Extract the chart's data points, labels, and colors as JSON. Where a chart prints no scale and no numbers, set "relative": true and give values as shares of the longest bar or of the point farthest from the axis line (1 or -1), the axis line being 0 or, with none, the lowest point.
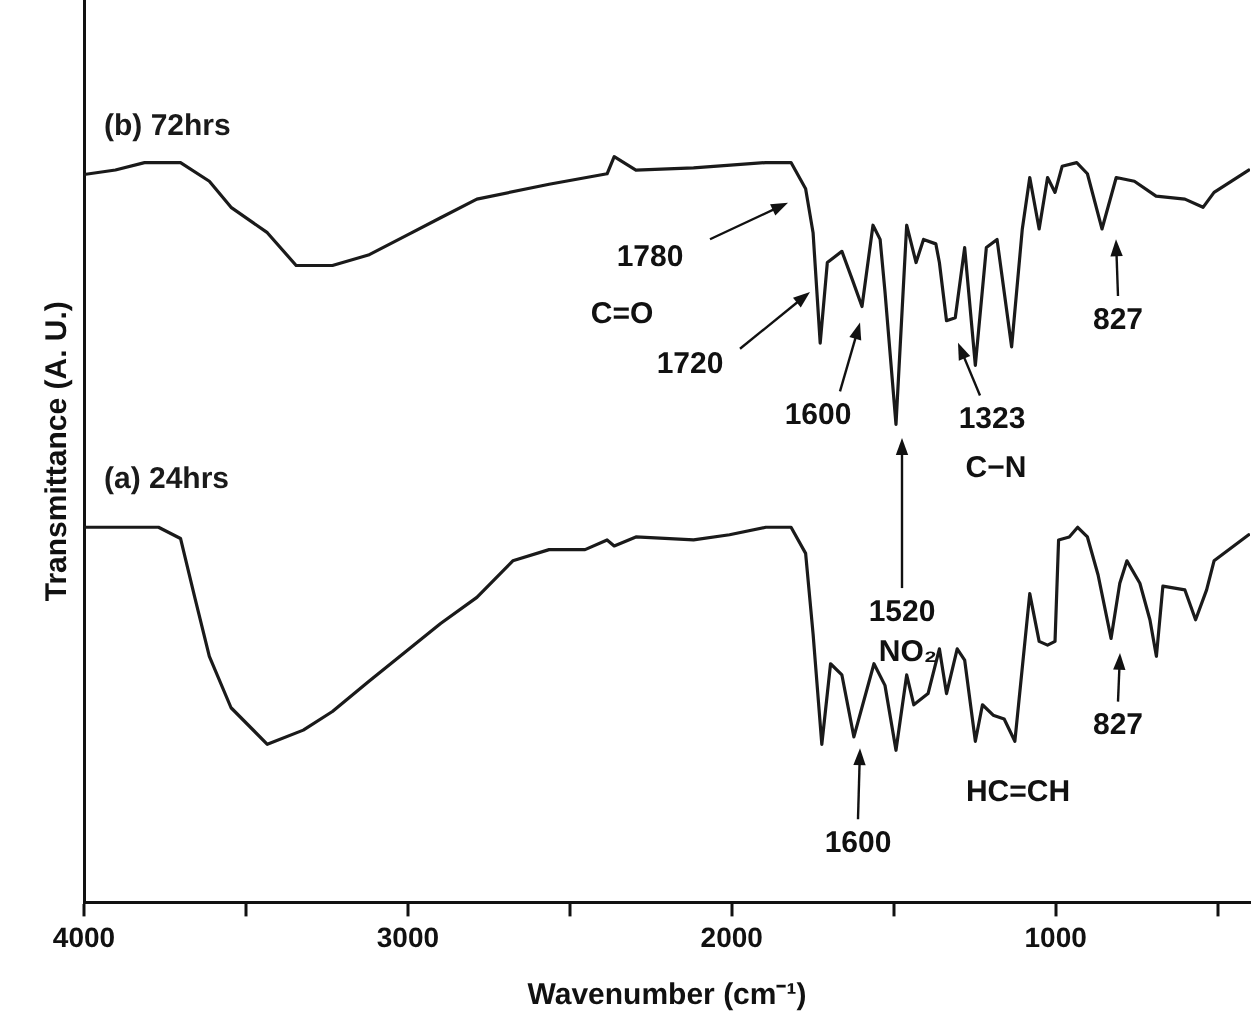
{
  "chart_data": {
    "type": "line",
    "xlabel": "Wavenumber (cm⁻¹)",
    "ylabel": "Transmittance (A. U.)",
    "relative": true,
    "legend": false,
    "grid": false,
    "marker": "none",
    "xlim": [
      4000,
      400
    ],
    "xticks": [
      4000,
      {
        "value": 3500,
        "label": null
      },
      3000,
      {
        "value": 2500,
        "label": null
      },
      2000,
      {
        "value": 1500,
        "label": null
      },
      1000,
      {
        "value": 500,
        "label": null
      }
    ],
    "series": [
      {
        "name": "(b) 72hrs",
        "color": "#1a1a1a",
        "x": [
          4000,
          3903,
          3813,
          3702,
          3613,
          3546,
          3434,
          3345,
          3233,
          3122,
          3010,
          2899,
          2787,
          2564,
          2385,
          2363,
          2296,
          2118,
          1895,
          1817,
          1772,
          1749,
          1727,
          1705,
          1660,
          1627,
          1598,
          1564,
          1542,
          1527,
          1493,
          1460,
          1431,
          1408,
          1370,
          1359,
          1337,
          1310,
          1281,
          1248,
          1214,
          1181,
          1136,
          1103,
          1080,
          1051,
          1025,
          1002,
          980,
          935,
          902,
          857,
          813,
          757,
          690,
          601,
          545,
          511,
          404
        ],
        "values": [
          0.976,
          0.982,
          0.992,
          0.992,
          0.967,
          0.932,
          0.898,
          0.854,
          0.854,
          0.868,
          0.893,
          0.918,
          0.943,
          0.963,
          0.977,
          1,
          0.982,
          0.985,
          0.992,
          0.992,
          0.957,
          0.898,
          0.75,
          0.858,
          0.873,
          0.834,
          0.799,
          0.908,
          0.889,
          0.819,
          0.641,
          0.908,
          0.858,
          0.889,
          0.883,
          0.858,
          0.78,
          0.784,
          0.878,
          0.72,
          0.878,
          0.889,
          0.745,
          0.903,
          0.972,
          0.903,
          0.972,
          0.952,
          0.987,
          0.992,
          0.977,
          0.903,
          0.972,
          0.967,
          0.947,
          0.943,
          0.932,
          0.952,
          0.982
        ]
      },
      {
        "name": "(a) 24hrs",
        "color": "#1a1a1a",
        "x": [
          4000,
          3903,
          3770,
          3702,
          3658,
          3613,
          3546,
          3434,
          3323,
          3233,
          3122,
          3010,
          2899,
          2787,
          2676,
          2564,
          2453,
          2385,
          2363,
          2296,
          2118,
          2007,
          1895,
          1817,
          1772,
          1749,
          1722,
          1695,
          1660,
          1623,
          1561,
          1527,
          1493,
          1460,
          1438,
          1394,
          1359,
          1337,
          1304,
          1281,
          1248,
          1226,
          1193,
          1159,
          1126,
          1080,
          1051,
          1025,
          1002,
          991,
          958,
          932,
          902,
          869,
          829,
          802,
          780,
          740,
          709,
          689,
          669,
          601,
          568,
          534,
          511,
          404
        ],
        "values": [
          0.503,
          0.503,
          0.503,
          0.488,
          0.409,
          0.33,
          0.261,
          0.212,
          0.231,
          0.256,
          0.296,
          0.335,
          0.374,
          0.409,
          0.458,
          0.473,
          0.473,
          0.486,
          0.478,
          0.49,
          0.486,
          0.493,
          0.503,
          0.503,
          0.468,
          0.36,
          0.212,
          0.32,
          0.305,
          0.222,
          0.32,
          0.291,
          0.204,
          0.305,
          0.265,
          0.28,
          0.34,
          0.28,
          0.34,
          0.325,
          0.216,
          0.265,
          0.251,
          0.246,
          0.216,
          0.414,
          0.35,
          0.345,
          0.35,
          0.486,
          0.49,
          0.503,
          0.49,
          0.439,
          0.354,
          0.428,
          0.458,
          0.428,
          0.379,
          0.33,
          0.424,
          0.419,
          0.379,
          0.419,
          0.458,
          0.493
        ]
      }
    ],
    "annotations": [
      "1780",
      "C=O",
      "1720",
      "1600",
      "1520",
      "NO₂",
      "1323",
      "C−N",
      "827",
      "1600",
      "HC=CH",
      "827"
    ]
  }
}
